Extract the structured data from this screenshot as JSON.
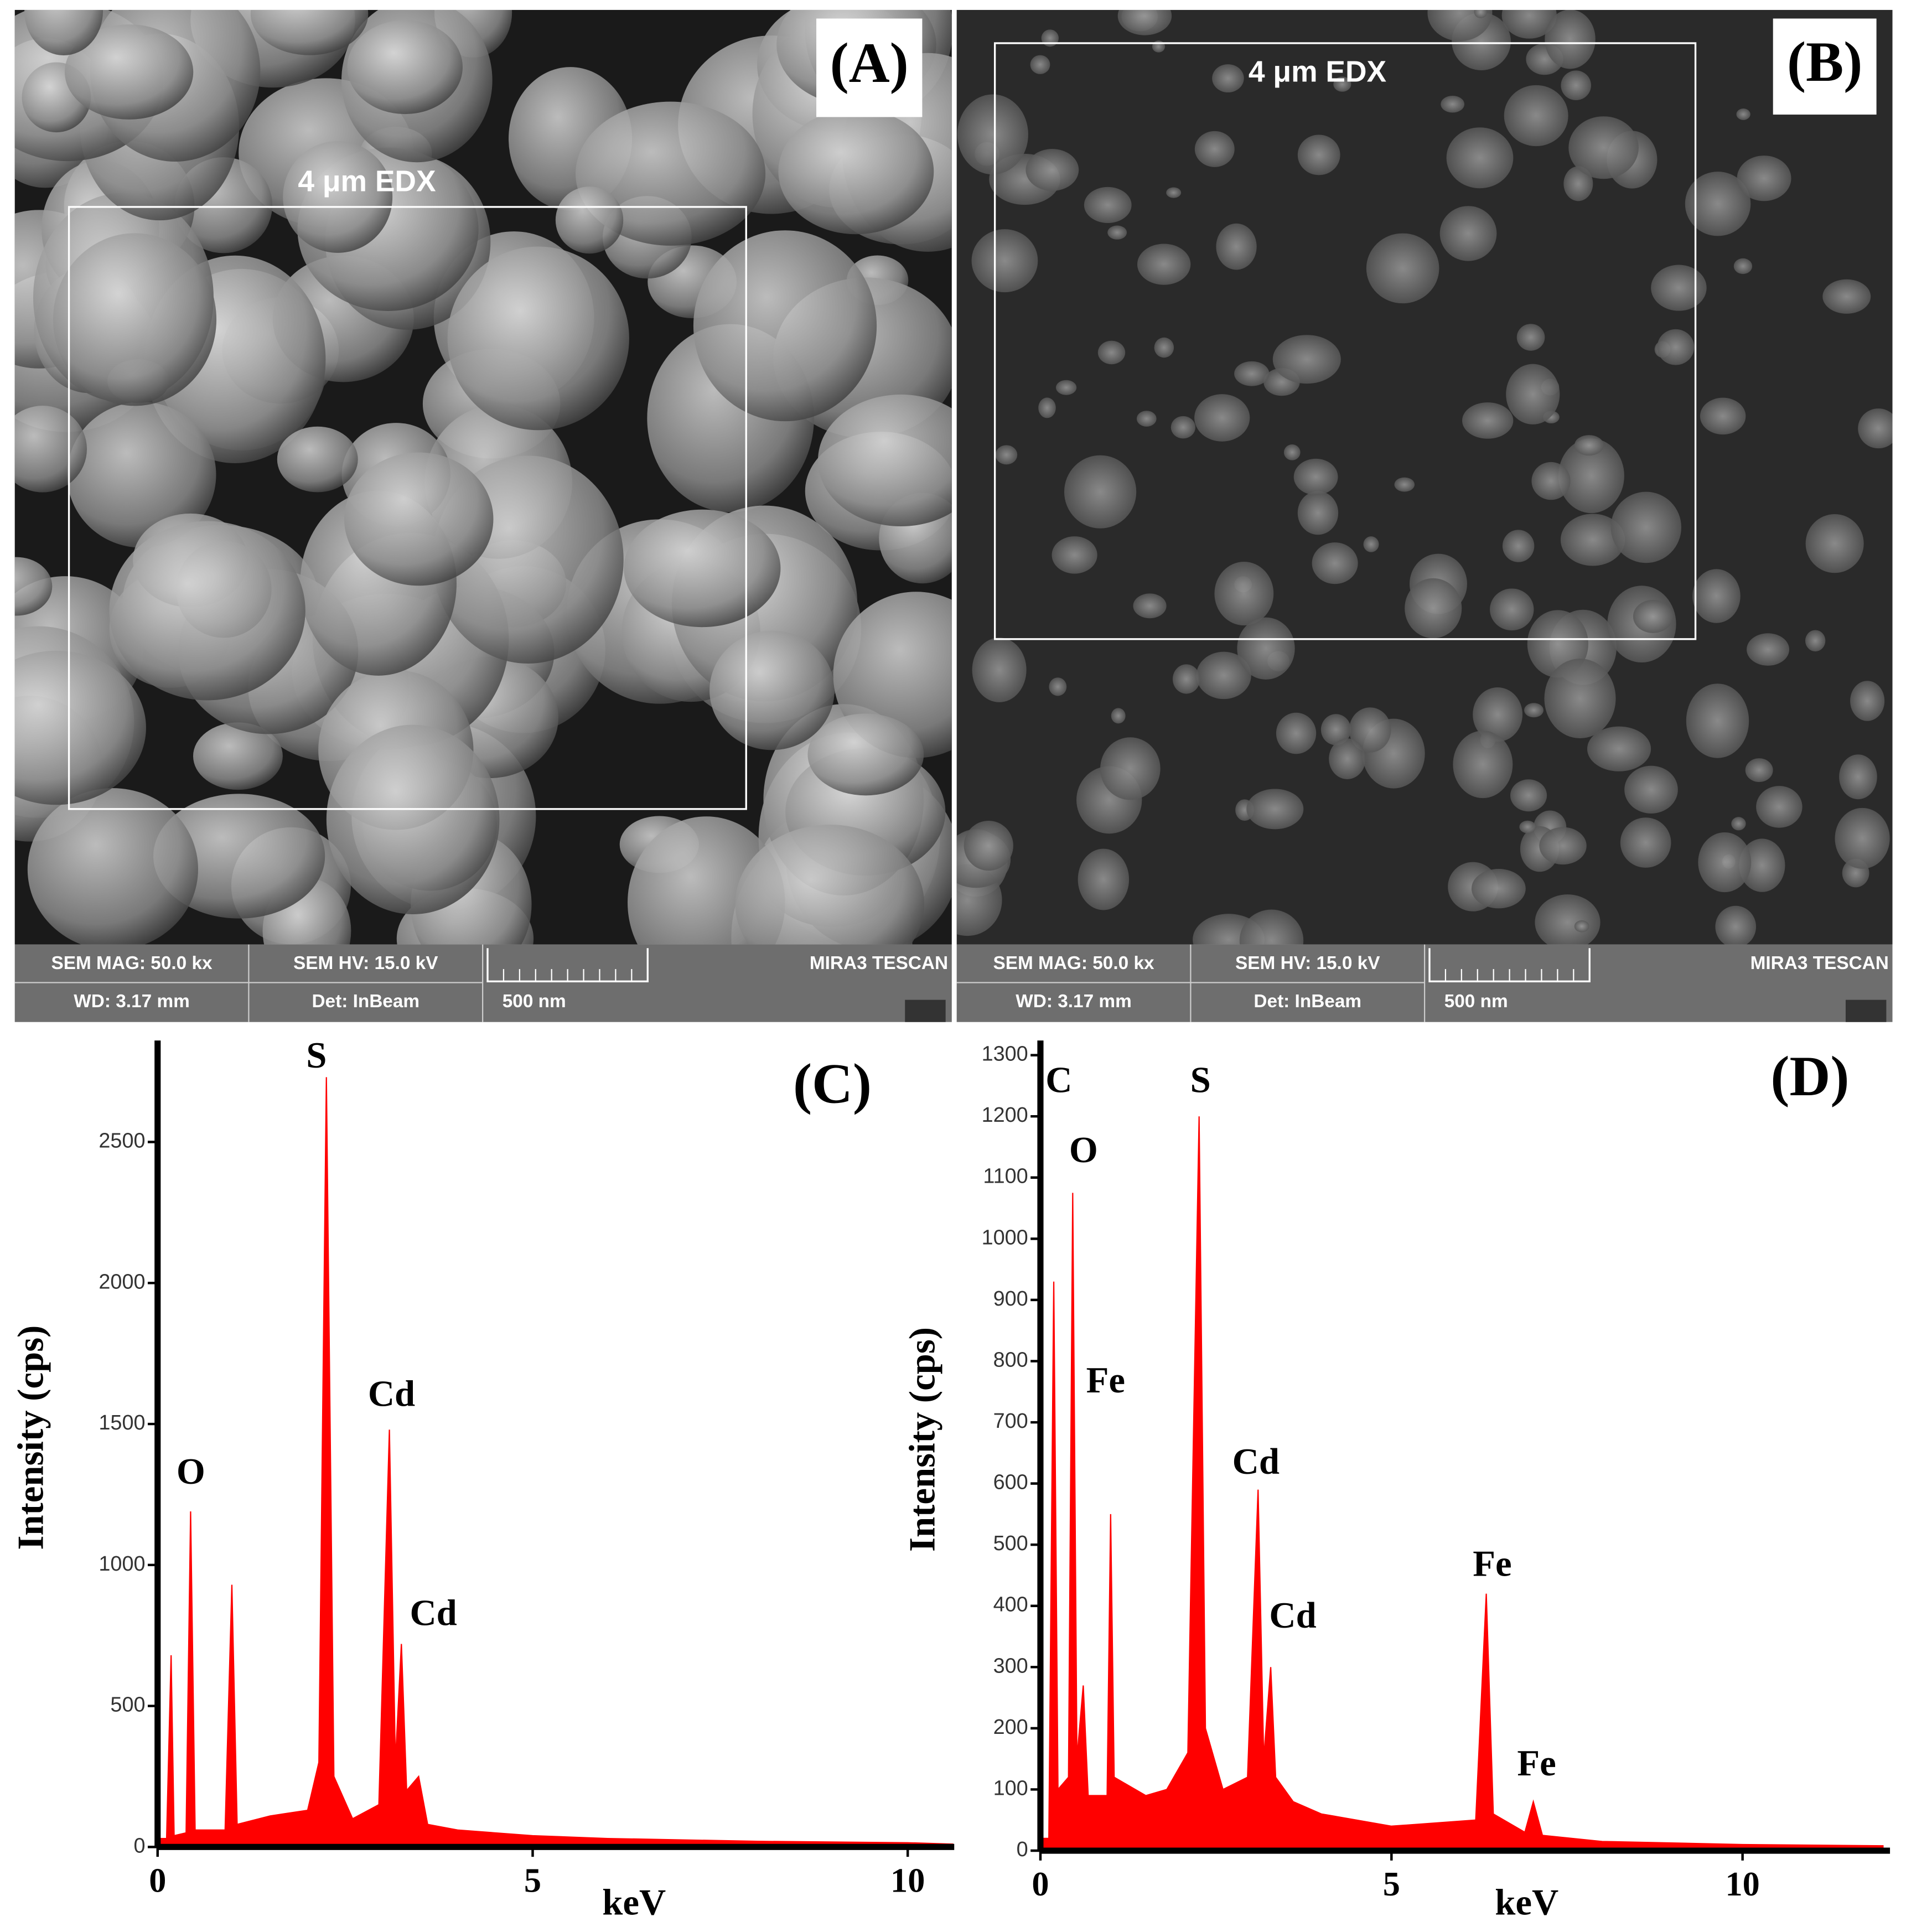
{
  "panels": [
    {
      "label": "(A)",
      "box_label": "4 μm EDX",
      "info": [
        "SEM MAG: 50.0 kx",
        "SEM HV: 15.0 kV",
        "MIRA3 TESCAN",
        "WD: 3.17 mm",
        "Det: InBeam",
        "500 nm"
      ]
    },
    {
      "label": "(B)",
      "box_label": "4 μm EDX",
      "info": [
        "SEM MAG: 50.0 kx",
        "SEM HV: 15.0 kV",
        "MIRA3 TESCAN",
        "WD: 3.17 mm",
        "Det: InBeam",
        "500 nm"
      ]
    }
  ],
  "chart_data": [
    {
      "type": "area",
      "label": "(C)",
      "x_label": "keV",
      "y_label": "Intensity (cps)",
      "color": "#ff0000",
      "xlim": [
        0,
        10.62
      ],
      "xticks": [
        0,
        5,
        10
      ],
      "ylim": [
        0,
        2860
      ],
      "yticks": [
        0,
        500,
        1000,
        1500,
        2000,
        2500
      ],
      "annotations": [
        "O",
        "S",
        "Cd",
        "Cd"
      ],
      "x": [
        0,
        0.12,
        0.18,
        0.22,
        0.38,
        0.44,
        0.5,
        0.9,
        0.99,
        1.06,
        1.5,
        2.0,
        2.15,
        2.25,
        2.35,
        2.6,
        2.95,
        3.09,
        3.17,
        3.25,
        3.32,
        3.48,
        3.6,
        4.0,
        5.0,
        6.0,
        8.0,
        10.0,
        10.6
      ],
      "values": [
        30,
        30,
        680,
        40,
        50,
        1190,
        60,
        60,
        930,
        80,
        110,
        130,
        300,
        2730,
        250,
        100,
        150,
        1480,
        300,
        720,
        200,
        250,
        80,
        60,
        40,
        30,
        20,
        15,
        10
      ]
    },
    {
      "type": "area",
      "label": "(D)",
      "x_label": "keV",
      "y_label": "Intensity (cps)",
      "color": "#ff0000",
      "xlim": [
        0,
        12.1
      ],
      "xticks": [
        0,
        5,
        10
      ],
      "ylim": [
        0,
        1324
      ],
      "yticks": [
        0,
        100,
        200,
        300,
        400,
        500,
        600,
        700,
        800,
        900,
        1000,
        1100,
        1200,
        1300
      ],
      "annotations": [
        "C",
        "O",
        "Fe",
        "S",
        "Cd",
        "Cd",
        "Fe",
        "Fe"
      ],
      "x": [
        0,
        0.12,
        0.19,
        0.25,
        0.4,
        0.46,
        0.52,
        0.61,
        0.68,
        0.95,
        1.0,
        1.05,
        1.5,
        1.8,
        2.1,
        2.26,
        2.35,
        2.6,
        2.95,
        3.1,
        3.18,
        3.28,
        3.35,
        3.6,
        4.0,
        5.0,
        6.2,
        6.35,
        6.45,
        6.9,
        7.02,
        7.15,
        8,
        10,
        12
      ],
      "values": [
        20,
        20,
        930,
        100,
        120,
        1075,
        150,
        270,
        90,
        90,
        550,
        120,
        90,
        100,
        160,
        1200,
        200,
        100,
        120,
        590,
        150,
        300,
        120,
        80,
        60,
        40,
        50,
        420,
        60,
        30,
        80,
        25,
        15,
        10,
        8
      ]
    }
  ]
}
